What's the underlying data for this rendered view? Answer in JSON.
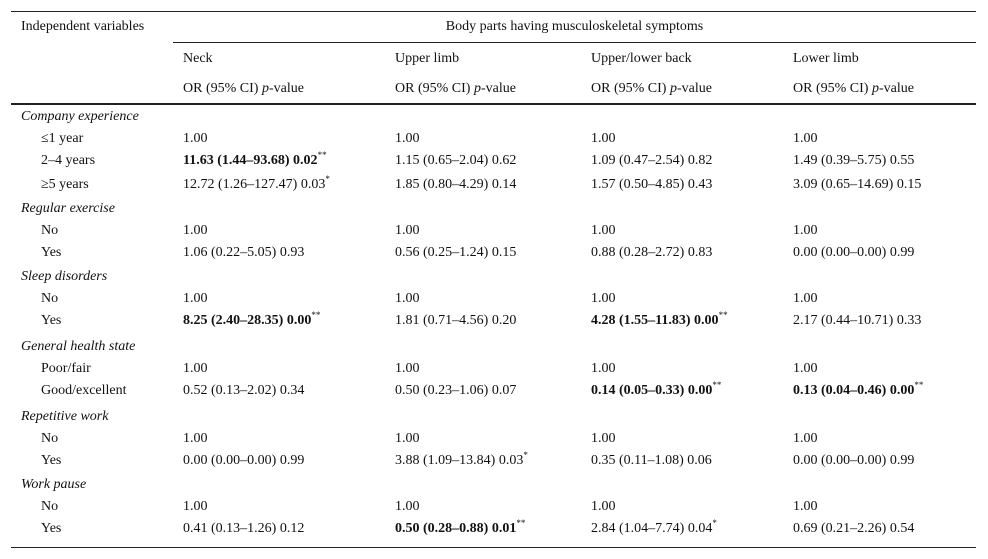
{
  "header": {
    "first_column": "Independent variables",
    "spanner": "Body parts having musculoskeletal symptoms",
    "columns": [
      {
        "name": "Neck",
        "stat": {
          "prefix": "OR (95% CI) ",
          "italic": "p",
          "suffix": "-value"
        }
      },
      {
        "name": "Upper limb",
        "stat": {
          "prefix": "OR (95% CI) ",
          "italic": "p",
          "suffix": "-value"
        }
      },
      {
        "name": "Upper/lower back",
        "stat": {
          "prefix": "OR (95% CI) ",
          "italic": "p",
          "suffix": "-value"
        }
      },
      {
        "name": "Lower limb",
        "stat": {
          "prefix": "OR (95% CI) ",
          "italic": "p",
          "suffix": "-value"
        }
      }
    ]
  },
  "groups": [
    {
      "name": "Company experience",
      "rows": [
        {
          "label": "≤1 year",
          "cells": [
            {
              "text": "1.00"
            },
            {
              "text": "1.00"
            },
            {
              "text": "1.00"
            },
            {
              "text": "1.00"
            }
          ]
        },
        {
          "label": "2–4 years",
          "cells": [
            {
              "text": "11.63 (1.44–93.68) 0.02",
              "bold": true,
              "sup": "**"
            },
            {
              "text": "1.15 (0.65–2.04) 0.62"
            },
            {
              "text": "1.09 (0.47–2.54) 0.82"
            },
            {
              "text": "1.49 (0.39–5.75) 0.55"
            }
          ]
        },
        {
          "label": "≥5 years",
          "cells": [
            {
              "text": "12.72 (1.26–127.47) 0.03",
              "sup": "*"
            },
            {
              "text": "1.85 (0.80–4.29) 0.14"
            },
            {
              "text": "1.57 (0.50–4.85) 0.43"
            },
            {
              "text": "3.09 (0.65–14.69) 0.15"
            }
          ]
        }
      ]
    },
    {
      "name": "Regular exercise",
      "rows": [
        {
          "label": "No",
          "cells": [
            {
              "text": "1.00"
            },
            {
              "text": "1.00"
            },
            {
              "text": "1.00"
            },
            {
              "text": "1.00"
            }
          ]
        },
        {
          "label": "Yes",
          "cells": [
            {
              "text": "1.06 (0.22–5.05) 0.93"
            },
            {
              "text": "0.56 (0.25–1.24) 0.15"
            },
            {
              "text": "0.88 (0.28–2.72) 0.83"
            },
            {
              "text": "0.00 (0.00–0.00) 0.99"
            }
          ]
        }
      ]
    },
    {
      "name": "Sleep disorders",
      "rows": [
        {
          "label": "No",
          "cells": [
            {
              "text": "1.00"
            },
            {
              "text": "1.00"
            },
            {
              "text": "1.00"
            },
            {
              "text": "1.00"
            }
          ]
        },
        {
          "label": "Yes",
          "cells": [
            {
              "text": "8.25 (2.40–28.35) 0.00",
              "bold": true,
              "sup": "**"
            },
            {
              "text": "1.81 (0.71–4.56) 0.20"
            },
            {
              "text": "4.28 (1.55–11.83) 0.00",
              "bold": true,
              "sup": "**"
            },
            {
              "text": "2.17 (0.44–10.71) 0.33"
            }
          ]
        }
      ]
    },
    {
      "name": "General health state",
      "rows": [
        {
          "label": "Poor/fair",
          "cells": [
            {
              "text": "1.00"
            },
            {
              "text": "1.00"
            },
            {
              "text": "1.00"
            },
            {
              "text": "1.00"
            }
          ]
        },
        {
          "label": "Good/excellent",
          "cells": [
            {
              "text": "0.52 (0.13–2.02) 0.34"
            },
            {
              "text": "0.50 (0.23–1.06) 0.07"
            },
            {
              "text": "0.14 (0.05–0.33) 0.00",
              "bold": true,
              "sup": "**"
            },
            {
              "text": "0.13 (0.04–0.46) 0.00",
              "bold": true,
              "sup": "**"
            }
          ]
        }
      ]
    },
    {
      "name": "Repetitive work",
      "rows": [
        {
          "label": "No",
          "cells": [
            {
              "text": "1.00"
            },
            {
              "text": "1.00"
            },
            {
              "text": "1.00"
            },
            {
              "text": "1.00"
            }
          ]
        },
        {
          "label": "Yes",
          "cells": [
            {
              "text": "0.00 (0.00–0.00) 0.99"
            },
            {
              "text": "3.88 (1.09–13.84) 0.03",
              "sup": "*"
            },
            {
              "text": "0.35 (0.11–1.08) 0.06"
            },
            {
              "text": "0.00 (0.00–0.00) 0.99"
            }
          ]
        }
      ]
    },
    {
      "name": "Work pause",
      "rows": [
        {
          "label": "No",
          "cells": [
            {
              "text": "1.00"
            },
            {
              "text": "1.00"
            },
            {
              "text": "1.00"
            },
            {
              "text": "1.00"
            }
          ]
        },
        {
          "label": "Yes",
          "cells": [
            {
              "text": "0.41 (0.13–1.26) 0.12"
            },
            {
              "text": "0.50 (0.28–0.88) 0.01",
              "bold": true,
              "sup": "**"
            },
            {
              "text": "2.84 (1.04–7.74) 0.04",
              "sup": "*"
            },
            {
              "text": "0.69 (0.21–2.26) 0.54"
            }
          ]
        }
      ]
    }
  ]
}
